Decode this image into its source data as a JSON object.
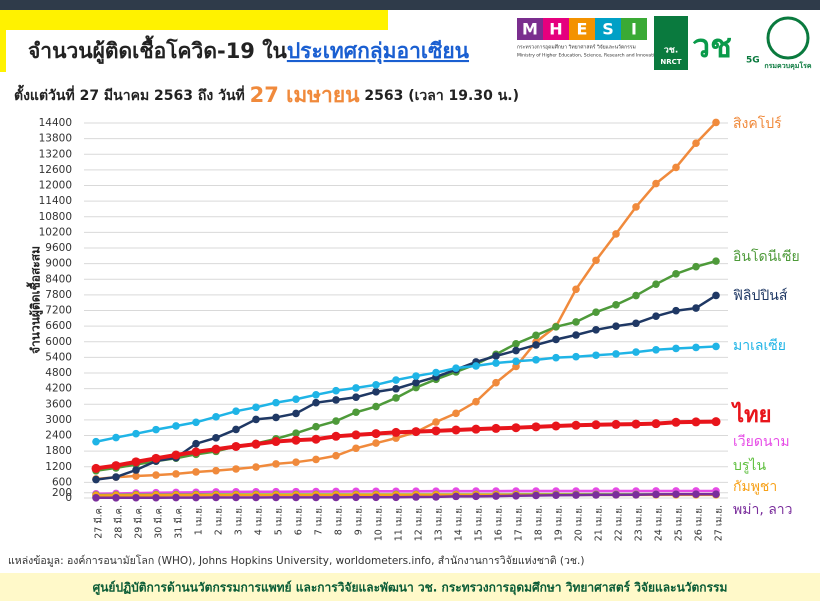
{
  "logos": {
    "mhesi": [
      "M",
      "H",
      "E",
      "S",
      "I"
    ],
    "mhesi_caption_th": "กระทรวงการอุดมศึกษา วิทยาศาสตร์ วิจัยและนวัตกรรม",
    "mhesi_caption_en": "Ministry of Higher Education, Science, Research and Innovation",
    "nrct": "วช.",
    "nrct_en": "NRCT",
    "g5": "5G",
    "ddc": "กรมควบคุมโรค"
  },
  "chart_data": {
    "type": "line",
    "title": "จำนวนผู้ติดเชื้อโควิด-19 ใน",
    "title_highlight": "ประเทศกลุ่มอาเซียน",
    "subtitle": [
      "ตั้งแต่วันที่ 27 มีนาคม 2563 ถึง วันที่ ",
      "27 เมษายน",
      " 2563 (เวลา 19.30 น.)"
    ],
    "y_label": "จำนวนผู้ติดเชื้อสะสม",
    "source": "แหล่งข้อมูล: องค์การอนามัยโลก (WHO), Johns Hopkins University, worldometers.info, สำนักงานการวิจัยแห่งชาติ (วช.)",
    "footer": "ศูนย์ปฏิบัติการด้านนวัตกรรมการแพทย์ และการวิจัยและพัฒนา วช.  กระทรวงการอุดมศึกษา วิทยาศาสตร์ วิจัยและนวัตกรรม",
    "categories": [
      "27 มี.ค.",
      "28 มี.ค.",
      "29 มี.ค.",
      "30 มี.ค.",
      "31 มี.ค.",
      "1 เม.ย.",
      "2 เม.ย.",
      "3 เม.ย.",
      "4 เม.ย.",
      "5 เม.ย.",
      "6 เม.ย.",
      "7 เม.ย.",
      "8 เม.ย.",
      "9 เม.ย.",
      "10 เม.ย.",
      "11 เม.ย.",
      "12 เม.ย.",
      "13 เม.ย.",
      "14 เม.ย.",
      "15 เม.ย.",
      "16 เม.ย.",
      "17 เม.ย.",
      "18 เม.ย.",
      "19 เม.ย.",
      "20 เม.ย.",
      "21 เม.ย.",
      "22 เม.ย.",
      "23 เม.ย.",
      "24 เม.ย.",
      "25 เม.ย.",
      "26 เม.ย.",
      "27 เม.ย."
    ],
    "ylim": [
      0,
      14400
    ],
    "yticks": [
      0,
      200,
      600,
      1200,
      1800,
      2400,
      3000,
      3600,
      4200,
      4800,
      5400,
      6000,
      6600,
      7200,
      7800,
      8400,
      9000,
      9600,
      10200,
      10800,
      11400,
      12000,
      12600,
      13200,
      13800,
      14400
    ],
    "grid": true,
    "series": [
      {
        "name": "สิงคโปร์",
        "color": "#f08a3c",
        "values": [
          732,
          802,
          844,
          879,
          926,
          1000,
          1049,
          1114,
          1189,
          1309,
          1375,
          1481,
          1623,
          1910,
          2108,
          2299,
          2532,
          2918,
          3252,
          3699,
          4427,
          5050,
          5992,
          6588,
          8014,
          9125,
          10141,
          11178,
          12075,
          12693,
          13624,
          14423
        ]
      },
      {
        "name": "อินโดนีเซีย",
        "color": "#4e9a3a",
        "values": [
          1046,
          1155,
          1285,
          1414,
          1528,
          1677,
          1790,
          1986,
          2092,
          2273,
          2491,
          2738,
          2956,
          3293,
          3512,
          3842,
          4241,
          4557,
          4839,
          5136,
          5516,
          5923,
          6248,
          6575,
          6760,
          7135,
          7418,
          7775,
          8211,
          8607,
          8882,
          9096
        ]
      },
      {
        "name": "ฟิลิปปินส์",
        "color": "#1f3864",
        "values": [
          707,
          803,
          1075,
          1418,
          1546,
          2084,
          2311,
          2633,
          3018,
          3094,
          3246,
          3660,
          3764,
          3870,
          4076,
          4195,
          4428,
          4648,
          4932,
          5223,
          5453,
          5660,
          5878,
          6087,
          6259,
          6459,
          6599,
          6710,
          6981,
          7192,
          7294,
          7777
        ]
      },
      {
        "name": "มาเลเซีย",
        "color": "#1fb4e6",
        "values": [
          2161,
          2320,
          2470,
          2626,
          2766,
          2908,
          3116,
          3333,
          3483,
          3662,
          3793,
          3963,
          4119,
          4228,
          4346,
          4530,
          4683,
          4817,
          4987,
          5072,
          5182,
          5251,
          5305,
          5389,
          5425,
          5482,
          5532,
          5603,
          5691,
          5742,
          5780,
          5820
        ]
      },
      {
        "name": "ไทย",
        "color": "#e8151b",
        "values": [
          1136,
          1245,
          1388,
          1524,
          1651,
          1771,
          1875,
          1978,
          2067,
          2169,
          2220,
          2258,
          2369,
          2423,
          2473,
          2518,
          2551,
          2579,
          2613,
          2643,
          2672,
          2700,
          2733,
          2765,
          2792,
          2811,
          2826,
          2839,
          2854,
          2907,
          2922,
          2931
        ]
      },
      {
        "name": "เวียดนาม",
        "color": "#e64ce6",
        "values": [
          163,
          174,
          188,
          203,
          212,
          218,
          233,
          237,
          240,
          241,
          245,
          249,
          251,
          255,
          257,
          258,
          260,
          262,
          265,
          265,
          266,
          268,
          268,
          268,
          268,
          268,
          268,
          268,
          270,
          270,
          270,
          270
        ]
      },
      {
        "name": "บรูไน",
        "color": "#5fbf3f",
        "values": [
          115,
          120,
          126,
          127,
          129,
          131,
          133,
          134,
          135,
          135,
          135,
          136,
          136,
          136,
          136,
          136,
          136,
          136,
          136,
          136,
          136,
          137,
          138,
          138,
          138,
          138,
          138,
          138,
          138,
          138,
          138,
          138
        ]
      },
      {
        "name": "กัมพูชา",
        "color": "#f7a21b",
        "values": [
          96,
          99,
          103,
          107,
          109,
          109,
          110,
          114,
          114,
          115,
          115,
          117,
          117,
          119,
          119,
          120,
          122,
          122,
          122,
          122,
          122,
          122,
          122,
          122,
          122,
          122,
          122,
          122,
          122,
          122,
          122,
          122
        ]
      },
      {
        "name": "พม่า, ลาว",
        "color": "#7a2e9c",
        "values": [
          8,
          8,
          10,
          10,
          15,
          15,
          20,
          20,
          21,
          22,
          22,
          22,
          23,
          27,
          27,
          28,
          38,
          41,
          62,
          63,
          74,
          85,
          98,
          107,
          111,
          119,
          121,
          123,
          139,
          144,
          146,
          146
        ]
      }
    ]
  }
}
